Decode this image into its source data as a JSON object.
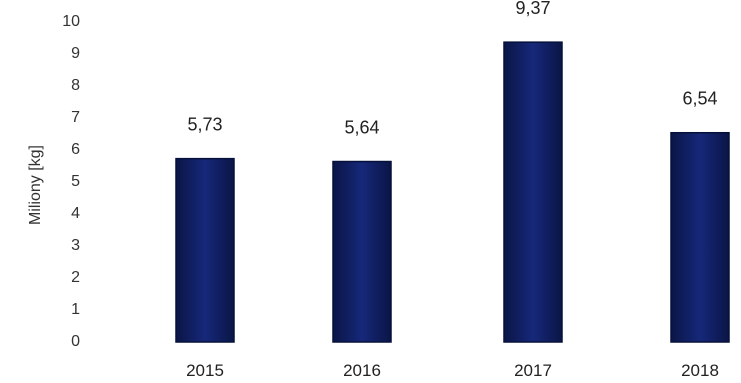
{
  "chart_data": {
    "type": "bar",
    "categories": [
      "2015",
      "2016",
      "2017",
      "2018"
    ],
    "values": [
      5.73,
      5.64,
      9.37,
      6.54
    ],
    "data_labels": [
      "5,73",
      "5,64",
      "9,37",
      "6,54"
    ],
    "title": "",
    "xlabel": "",
    "ylabel": "Miliony [kg]",
    "ylim": [
      0,
      10
    ],
    "yticks": [
      "0",
      "1",
      "2",
      "3",
      "4",
      "5",
      "6",
      "7",
      "8",
      "9",
      "10"
    ],
    "grid": false,
    "legend": "none",
    "bar_color": "#0f1f5c",
    "bar_edge_color": "#06103a"
  }
}
